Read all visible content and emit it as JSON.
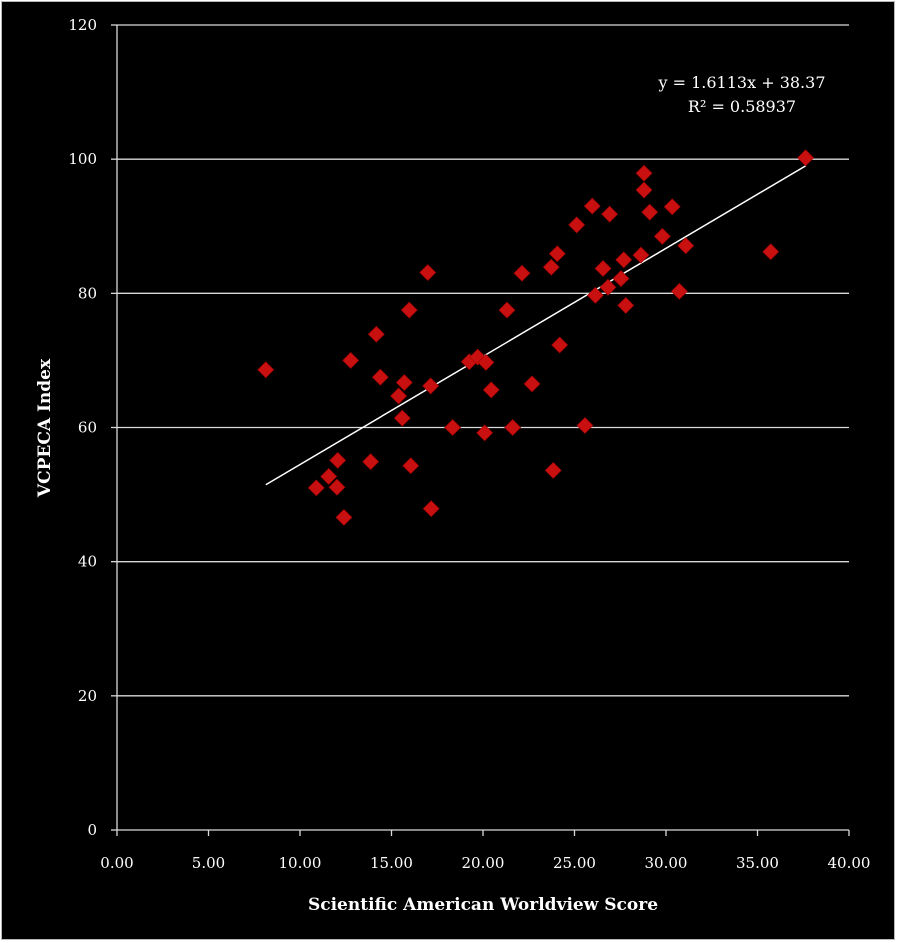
{
  "chart_data": {
    "type": "scatter",
    "title": "",
    "xlabel": "Scientific American Worldview Score",
    "ylabel": "VCPECA Index",
    "xlim": [
      0,
      40
    ],
    "ylim": [
      0,
      120
    ],
    "x_ticks": [
      "0.00",
      "5.00",
      "10.00",
      "15.00",
      "20.00",
      "25.00",
      "30.00",
      "35.00",
      "40.00"
    ],
    "y_ticks": [
      "0",
      "20",
      "40",
      "60",
      "80",
      "100",
      "120"
    ],
    "grid": {
      "horizontal": true,
      "vertical": false
    },
    "legend": null,
    "series": [
      {
        "name": "VCPECA Index",
        "marker": "diamond",
        "color": "#C81010",
        "points": [
          [
            8.13,
            68.6
          ],
          [
            16.98,
            83.1
          ],
          [
            15.97,
            77.5
          ],
          [
            14.17,
            73.9
          ],
          [
            12.77,
            70.0
          ],
          [
            14.39,
            67.5
          ],
          [
            15.7,
            66.7
          ],
          [
            15.39,
            64.7
          ],
          [
            17.14,
            66.2
          ],
          [
            15.59,
            61.4
          ],
          [
            18.34,
            60.0
          ],
          [
            12.06,
            55.1
          ],
          [
            13.86,
            54.9
          ],
          [
            16.05,
            54.3
          ],
          [
            11.57,
            52.7
          ],
          [
            10.89,
            51.0
          ],
          [
            12.02,
            51.1
          ],
          [
            17.17,
            47.9
          ],
          [
            12.4,
            46.6
          ],
          [
            25.12,
            90.2
          ],
          [
            24.06,
            85.9
          ],
          [
            23.73,
            83.9
          ],
          [
            22.13,
            83.0
          ],
          [
            26.56,
            83.7
          ],
          [
            27.69,
            85.0
          ],
          [
            27.54,
            82.2
          ],
          [
            26.83,
            80.9
          ],
          [
            26.14,
            79.7
          ],
          [
            27.8,
            78.2
          ],
          [
            21.31,
            77.5
          ],
          [
            24.19,
            72.3
          ],
          [
            19.25,
            69.8
          ],
          [
            19.71,
            70.5
          ],
          [
            20.16,
            69.7
          ],
          [
            22.68,
            66.5
          ],
          [
            20.45,
            65.6
          ],
          [
            20.09,
            59.2
          ],
          [
            21.62,
            60.0
          ],
          [
            25.57,
            60.3
          ],
          [
            23.84,
            53.6
          ],
          [
            37.63,
            100.2
          ],
          [
            28.8,
            97.9
          ],
          [
            28.8,
            95.4
          ],
          [
            25.97,
            93.0
          ],
          [
            26.92,
            91.8
          ],
          [
            29.11,
            92.1
          ],
          [
            30.34,
            92.9
          ],
          [
            29.8,
            88.5
          ],
          [
            31.08,
            87.1
          ],
          [
            35.72,
            86.2
          ],
          [
            28.63,
            85.7
          ],
          [
            30.73,
            80.3
          ]
        ]
      }
    ],
    "trendline": {
      "type": "linear",
      "slope": 1.6113,
      "intercept": 38.37,
      "x_range": [
        8.13,
        37.63
      ],
      "color": "#FFFFFF",
      "equation_label": "y = 1.6113x + 38.37",
      "r2_label": "R² = 0.58937"
    },
    "annotations": [
      "y = 1.6113x + 38.37",
      "R² = 0.58937"
    ]
  }
}
